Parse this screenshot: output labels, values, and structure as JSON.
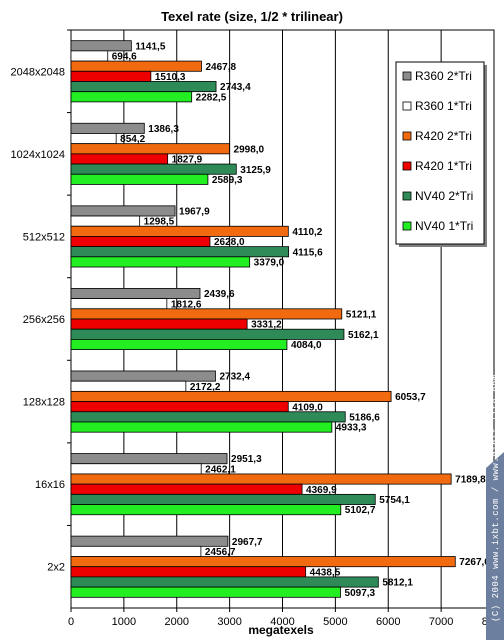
{
  "chart_data": {
    "type": "bar",
    "orientation": "horizontal",
    "title": "Texel rate (size, 1/2 * trilinear)",
    "xlabel": "megatexels",
    "ylabel": "",
    "xlim": [
      0,
      8000
    ],
    "xticks": [
      "0",
      "1000",
      "2000",
      "3000",
      "4000",
      "5000",
      "6000",
      "7000",
      "8000"
    ],
    "grid": "vertical",
    "legend_position": "right",
    "categories": [
      "2048x2048",
      "1024x1024",
      "512x512",
      "256x256",
      "128x128",
      "16x16",
      "2x2"
    ],
    "series": [
      {
        "name": "R360 2*Tri",
        "color": "#8c8c8c",
        "values": [
          1141.5,
          1386.3,
          1967.9,
          2439.6,
          2732.4,
          2951.3,
          2967.7
        ],
        "labels": [
          "1141,5",
          "1386,3",
          "1967,9",
          "2439,6",
          "2732,4",
          "2951,3",
          "2967,7"
        ]
      },
      {
        "name": "R360 1*Tri",
        "color": "#ffffff",
        "values": [
          694.6,
          854.2,
          1298.5,
          1812.6,
          2172.2,
          2462.1,
          2456.7
        ],
        "labels": [
          "694,6",
          "854,2",
          "1298,5",
          "1812,6",
          "2172,2",
          "2462,1",
          "2456,7"
        ]
      },
      {
        "name": "R420 2*Tri",
        "color": "#f26a0f",
        "values": [
          2467.8,
          2998.0,
          4110.2,
          5121.1,
          6053.7,
          7189.8,
          7267.6
        ],
        "labels": [
          "2467,8",
          "2998,0",
          "4110,2",
          "5121,1",
          "6053,7",
          "7189,8",
          "7267,6"
        ]
      },
      {
        "name": "R420 1*Tri",
        "color": "#ee0000",
        "values": [
          1510.3,
          1827.9,
          2628.0,
          3331.2,
          4109.0,
          4369.9,
          4438.5
        ],
        "labels": [
          "1510,3",
          "1827,9",
          "2628,0",
          "3331,2",
          "4109,0",
          "4369,9",
          "4438,5"
        ]
      },
      {
        "name": "NV40 2*Tri",
        "color": "#2e8b57",
        "values": [
          2743.4,
          3125.9,
          4115.6,
          5162.1,
          5186.6,
          5754.1,
          5812.1
        ],
        "labels": [
          "2743,4",
          "3125,9",
          "4115,6",
          "5162,1",
          "5186,6",
          "5754,1",
          "5812,1"
        ]
      },
      {
        "name": "NV40 1*Tri",
        "color": "#22ee22",
        "values": [
          2282.5,
          2589.3,
          3379.0,
          4084.0,
          4933.3,
          5102.7,
          5097.3
        ],
        "labels": [
          "2282,5",
          "2589,3",
          "3379,0",
          "4084,0",
          "4933,3",
          "5102,7",
          "5097,3"
        ]
      }
    ]
  },
  "watermark": "(C) 2004 www.ixbt.com / www.digit-life.com"
}
